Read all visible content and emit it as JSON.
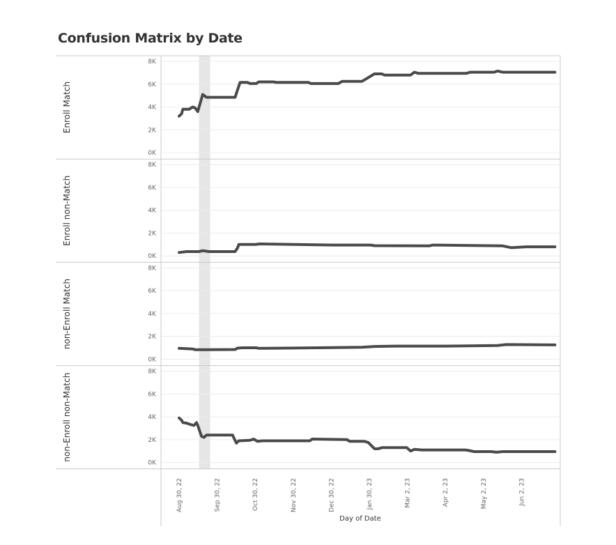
{
  "title": "Confusion Matrix by Date",
  "chart_data": {
    "type": "line",
    "xlabel": "Day of Date",
    "x_tick_labels": [
      "Aug 30, 22",
      "Sep 30, 22",
      "Oct 30, 22",
      "Nov 30, 22",
      "Dec 30, 22",
      "Jan 30, 23",
      "Mar 2, 23",
      "Apr 2, 23",
      "May 2, 23",
      "Jun 2, 23"
    ],
    "y_tick_labels": [
      "0K",
      "2K",
      "4K",
      "6K",
      "8K"
    ],
    "ylim": [
      0,
      8000
    ],
    "highlight_band": [
      "2022-09-15",
      "2022-09-24"
    ],
    "grid": true,
    "color": "#4a4a4a",
    "band_color": "#e6e6e6",
    "series": [
      {
        "name": "Enroll Match",
        "points": [
          [
            "2022-08-30",
            3200
          ],
          [
            "2022-09-01",
            3400
          ],
          [
            "2022-09-02",
            3800
          ],
          [
            "2022-09-07",
            3800
          ],
          [
            "2022-09-10",
            4000
          ],
          [
            "2022-09-12",
            3900
          ],
          [
            "2022-09-14",
            3600
          ],
          [
            "2022-09-18",
            5100
          ],
          [
            "2022-09-21",
            4850
          ],
          [
            "2022-09-23",
            4850
          ],
          [
            "2022-10-14",
            4850
          ],
          [
            "2022-10-16",
            5500
          ],
          [
            "2022-10-18",
            6150
          ],
          [
            "2022-10-24",
            6150
          ],
          [
            "2022-10-26",
            6050
          ],
          [
            "2022-10-31",
            6050
          ],
          [
            "2022-11-02",
            6200
          ],
          [
            "2022-11-14",
            6200
          ],
          [
            "2022-11-16",
            6150
          ],
          [
            "2022-12-12",
            6150
          ],
          [
            "2022-12-14",
            6050
          ],
          [
            "2023-01-05",
            6050
          ],
          [
            "2023-01-08",
            6250
          ],
          [
            "2023-01-24",
            6250
          ],
          [
            "2023-02-03",
            6900
          ],
          [
            "2023-02-09",
            6900
          ],
          [
            "2023-02-11",
            6800
          ],
          [
            "2023-03-04",
            6800
          ],
          [
            "2023-03-07",
            7050
          ],
          [
            "2023-03-10",
            6950
          ],
          [
            "2023-04-18",
            6950
          ],
          [
            "2023-04-21",
            7050
          ],
          [
            "2023-05-10",
            7050
          ],
          [
            "2023-05-13",
            7150
          ],
          [
            "2023-05-17",
            7050
          ],
          [
            "2023-06-28",
            7050
          ]
        ]
      },
      {
        "name": "Enroll non-Match",
        "points": [
          [
            "2022-08-30",
            300
          ],
          [
            "2022-09-05",
            380
          ],
          [
            "2022-09-15",
            380
          ],
          [
            "2022-09-18",
            460
          ],
          [
            "2022-09-23",
            380
          ],
          [
            "2022-10-14",
            380
          ],
          [
            "2022-10-16",
            700
          ],
          [
            "2022-10-17",
            1000
          ],
          [
            "2022-10-31",
            1000
          ],
          [
            "2022-11-02",
            1050
          ],
          [
            "2023-01-01",
            950
          ],
          [
            "2023-01-31",
            950
          ],
          [
            "2023-02-03",
            900
          ],
          [
            "2023-03-19",
            880
          ],
          [
            "2023-03-22",
            950
          ],
          [
            "2023-05-17",
            880
          ],
          [
            "2023-05-24",
            720
          ],
          [
            "2023-06-05",
            800
          ],
          [
            "2023-06-28",
            800
          ]
        ]
      },
      {
        "name": "non-Enroll Match",
        "points": [
          [
            "2022-08-30",
            950
          ],
          [
            "2022-09-10",
            900
          ],
          [
            "2022-09-12",
            830
          ],
          [
            "2022-09-21",
            830
          ],
          [
            "2022-10-14",
            850
          ],
          [
            "2022-10-16",
            970
          ],
          [
            "2022-10-20",
            1000
          ],
          [
            "2022-10-31",
            1000
          ],
          [
            "2022-11-02",
            950
          ],
          [
            "2022-12-01",
            980
          ],
          [
            "2023-01-01",
            1020
          ],
          [
            "2023-01-24",
            1050
          ],
          [
            "2023-02-03",
            1120
          ],
          [
            "2023-02-20",
            1150
          ],
          [
            "2023-04-01",
            1150
          ],
          [
            "2023-05-13",
            1200
          ],
          [
            "2023-05-20",
            1280
          ],
          [
            "2023-06-28",
            1250
          ]
        ]
      },
      {
        "name": "non-Enroll non-Match",
        "points": [
          [
            "2022-08-30",
            3900
          ],
          [
            "2022-09-01",
            3700
          ],
          [
            "2022-09-02",
            3500
          ],
          [
            "2022-09-05",
            3450
          ],
          [
            "2022-09-09",
            3300
          ],
          [
            "2022-09-11",
            3250
          ],
          [
            "2022-09-13",
            3500
          ],
          [
            "2022-09-14",
            3250
          ],
          [
            "2022-09-17",
            2300
          ],
          [
            "2022-09-19",
            2200
          ],
          [
            "2022-09-21",
            2400
          ],
          [
            "2022-10-12",
            2400
          ],
          [
            "2022-10-15",
            1700
          ],
          [
            "2022-10-17",
            1900
          ],
          [
            "2022-10-26",
            1950
          ],
          [
            "2022-10-29",
            2050
          ],
          [
            "2022-11-01",
            1850
          ],
          [
            "2022-11-05",
            1900
          ],
          [
            "2022-12-13",
            1900
          ],
          [
            "2022-12-15",
            2050
          ],
          [
            "2023-01-12",
            2000
          ],
          [
            "2023-01-14",
            1850
          ],
          [
            "2023-01-26",
            1850
          ],
          [
            "2023-01-29",
            1750
          ],
          [
            "2023-02-03",
            1200
          ],
          [
            "2023-02-06",
            1200
          ],
          [
            "2023-02-09",
            1300
          ],
          [
            "2023-03-01",
            1300
          ],
          [
            "2023-03-04",
            1000
          ],
          [
            "2023-03-07",
            1150
          ],
          [
            "2023-03-13",
            1100
          ],
          [
            "2023-04-17",
            1100
          ],
          [
            "2023-04-20",
            1050
          ],
          [
            "2023-04-24",
            950
          ],
          [
            "2023-05-08",
            950
          ],
          [
            "2023-05-12",
            900
          ],
          [
            "2023-05-17",
            950
          ],
          [
            "2023-06-28",
            950
          ]
        ]
      }
    ]
  }
}
